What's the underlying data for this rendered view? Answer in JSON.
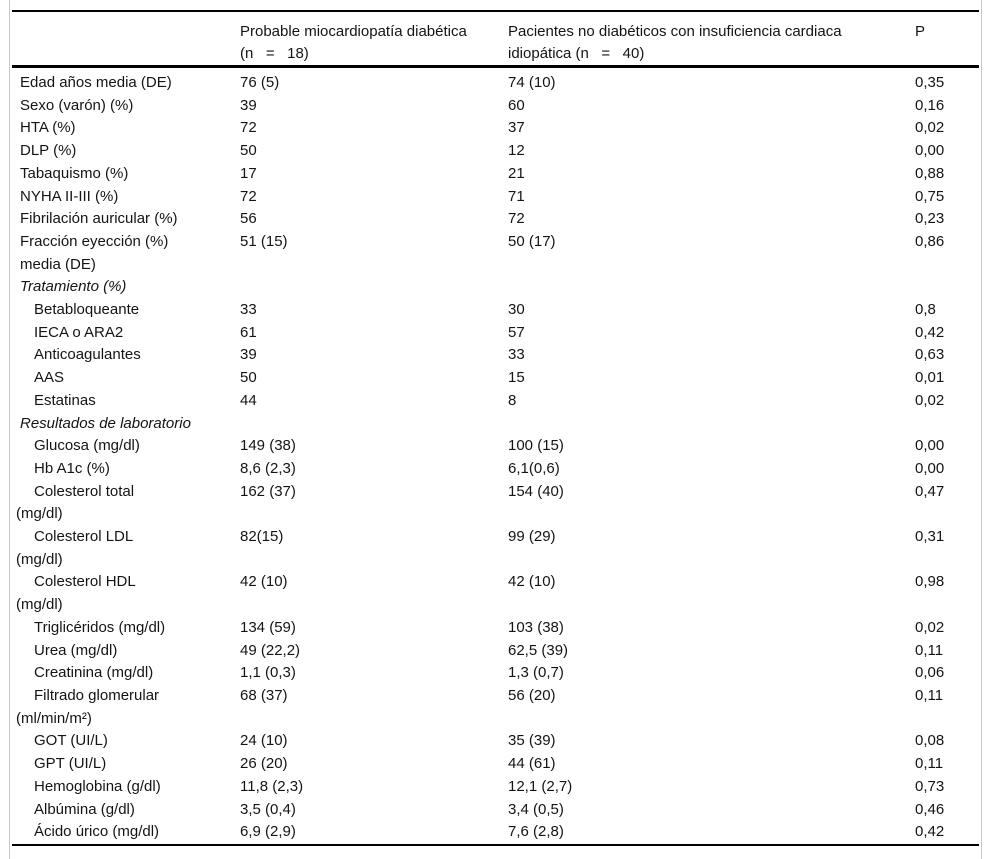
{
  "table": {
    "header": {
      "col_label": "",
      "col_group1": "Probable miocardiopatía diabética\n(n   =   18)",
      "col_group2": "Pacientes no diabéticos con insuficiencia cardiaca\nidiopática (n   =   40)",
      "col_p": "P"
    },
    "rows": [
      {
        "label": [
          "Edad años media (DE)"
        ],
        "indent": 0,
        "italic": false,
        "v1": "76 (5)",
        "v2": "74 (10)",
        "p": "0,35"
      },
      {
        "label": [
          "Sexo (varón) (%)"
        ],
        "indent": 0,
        "italic": false,
        "v1": "39",
        "v2": "60",
        "p": "0,16"
      },
      {
        "label": [
          "HTA (%)"
        ],
        "indent": 0,
        "italic": false,
        "v1": "72",
        "v2": "37",
        "p": "0,02"
      },
      {
        "label": [
          "DLP (%)"
        ],
        "indent": 0,
        "italic": false,
        "v1": "50",
        "v2": "12",
        "p": "0,00"
      },
      {
        "label": [
          "Tabaquismo (%)"
        ],
        "indent": 0,
        "italic": false,
        "v1": "17",
        "v2": "21",
        "p": "0,88"
      },
      {
        "label": [
          "NYHA II-III (%)"
        ],
        "indent": 0,
        "italic": false,
        "v1": "72",
        "v2": "71",
        "p": "0,75"
      },
      {
        "label": [
          "Fibrilación auricular (%)"
        ],
        "indent": 0,
        "italic": false,
        "v1": "56",
        "v2": "72",
        "p": "0,23"
      },
      {
        "label": [
          "Fracción eyección (%)",
          "media (DE)"
        ],
        "indent": 0,
        "italic": false,
        "v1": "51 (15)",
        "v2": "50 (17)",
        "p": "0,86"
      },
      {
        "label": [
          "Tratamiento (%)"
        ],
        "indent": 0,
        "italic": true,
        "v1": "",
        "v2": "",
        "p": ""
      },
      {
        "label": [
          "Betabloqueante"
        ],
        "indent": 1,
        "italic": false,
        "v1": "33",
        "v2": "30",
        "p": "0,8"
      },
      {
        "label": [
          "IECA o ARA2"
        ],
        "indent": 1,
        "italic": false,
        "v1": "61",
        "v2": "57",
        "p": "0,42"
      },
      {
        "label": [
          "Anticoagulantes"
        ],
        "indent": 1,
        "italic": false,
        "v1": "39",
        "v2": "33",
        "p": "0,63"
      },
      {
        "label": [
          "AAS"
        ],
        "indent": 1,
        "italic": false,
        "v1": "50",
        "v2": "15",
        "p": "0,01"
      },
      {
        "label": [
          "Estatinas"
        ],
        "indent": 1,
        "italic": false,
        "v1": "44",
        "v2": "8",
        "p": "0,02"
      },
      {
        "label": [
          "Resultados de laboratorio"
        ],
        "indent": 0,
        "italic": true,
        "v1": "",
        "v2": "",
        "p": ""
      },
      {
        "label": [
          "Glucosa (mg/dl)"
        ],
        "indent": 1,
        "italic": false,
        "v1": "149 (38)",
        "v2": "100 (15)",
        "p": "0,00"
      },
      {
        "label": [
          "Hb A1c (%)"
        ],
        "indent": 1,
        "italic": false,
        "v1": "8,6 (2,3)",
        "v2": "6,1(0,6)",
        "p": "0,00"
      },
      {
        "label": [
          "Colesterol total",
          "(mg/dl)"
        ],
        "indent": 1,
        "italic": false,
        "v1": "162 (37)",
        "v2": "154 (40)",
        "p": "0,47"
      },
      {
        "label": [
          "Colesterol LDL",
          "(mg/dl)"
        ],
        "indent": 1,
        "italic": false,
        "v1": "82(15)",
        "v2": "99 (29)",
        "p": "0,31"
      },
      {
        "label": [
          "Colesterol HDL",
          "(mg/dl)"
        ],
        "indent": 1,
        "italic": false,
        "v1": "42 (10)",
        "v2": "42 (10)",
        "p": "0,98"
      },
      {
        "label": [
          "Triglicéridos (mg/dl)"
        ],
        "indent": 1,
        "italic": false,
        "v1": "134 (59)",
        "v2": "103 (38)",
        "p": "0,02"
      },
      {
        "label": [
          "Urea (mg/dl)"
        ],
        "indent": 1,
        "italic": false,
        "v1": "49 (22,2)",
        "v2": "62,5 (39)",
        "p": "0,11"
      },
      {
        "label": [
          "Creatinina (mg/dl)"
        ],
        "indent": 1,
        "italic": false,
        "v1": "1,1 (0,3)",
        "v2": "1,3 (0,7)",
        "p": "0,06"
      },
      {
        "label": [
          "Filtrado glomerular",
          "(ml/min/m²)"
        ],
        "indent": 1,
        "italic": false,
        "v1": "68 (37)",
        "v2": "56 (20)",
        "p": "0,11"
      },
      {
        "label": [
          "GOT (UI/L)"
        ],
        "indent": 1,
        "italic": false,
        "v1": "24 (10)",
        "v2": "35 (39)",
        "p": "0,08"
      },
      {
        "label": [
          "GPT (UI/L)"
        ],
        "indent": 1,
        "italic": false,
        "v1": "26 (20)",
        "v2": "44 (61)",
        "p": "0,11"
      },
      {
        "label": [
          "Hemoglobina (g/dl)"
        ],
        "indent": 1,
        "italic": false,
        "v1": "11,8 (2,3)",
        "v2": "12,1 (2,7)",
        "p": "0,73"
      },
      {
        "label": [
          "Albúmina (g/dl)"
        ],
        "indent": 1,
        "italic": false,
        "v1": "3,5 (0,4)",
        "v2": "3,4 (0,5)",
        "p": "0,46"
      },
      {
        "label": [
          "Ácido úrico (mg/dl)"
        ],
        "indent": 1,
        "italic": false,
        "v1": "6,9 (2,9)",
        "v2": "7,6 (2,8)",
        "p": "0,42"
      }
    ]
  }
}
